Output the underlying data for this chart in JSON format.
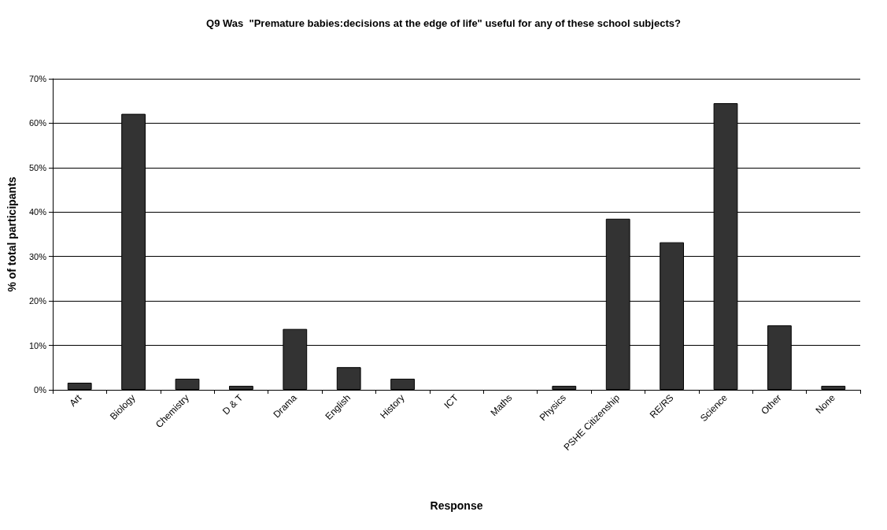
{
  "chart_data": {
    "type": "bar",
    "title": "Q9 Was  \"Premature babies:decisions at the edge of life\" useful for any of these school subjects?",
    "xlabel": "Response",
    "ylabel": "% of total participants",
    "categories": [
      "Art",
      "Biology",
      "Chemistry",
      "D & T",
      "Drama",
      "English",
      "History",
      "ICT",
      "Maths",
      "Physics",
      "PSHE Citizenship",
      "RE/RS",
      "Science",
      "Other",
      "None"
    ],
    "values": [
      1.6,
      62.1,
      2.5,
      0.9,
      13.7,
      5.1,
      2.5,
      0,
      0,
      0.9,
      38.5,
      33.2,
      64.5,
      14.5,
      0.9
    ],
    "color": "#333333",
    "ylim": [
      0,
      70
    ],
    "yticks": [
      {
        "value": 0,
        "label": "0%"
      },
      {
        "value": 10,
        "label": "10%"
      },
      {
        "value": 20,
        "label": "20%"
      },
      {
        "value": 30,
        "label": "30%"
      },
      {
        "value": 40,
        "label": "40%"
      },
      {
        "value": 50,
        "label": "50%"
      },
      {
        "value": 60,
        "label": "60%"
      },
      {
        "value": 70,
        "label": "70%"
      }
    ],
    "grid": "y"
  }
}
